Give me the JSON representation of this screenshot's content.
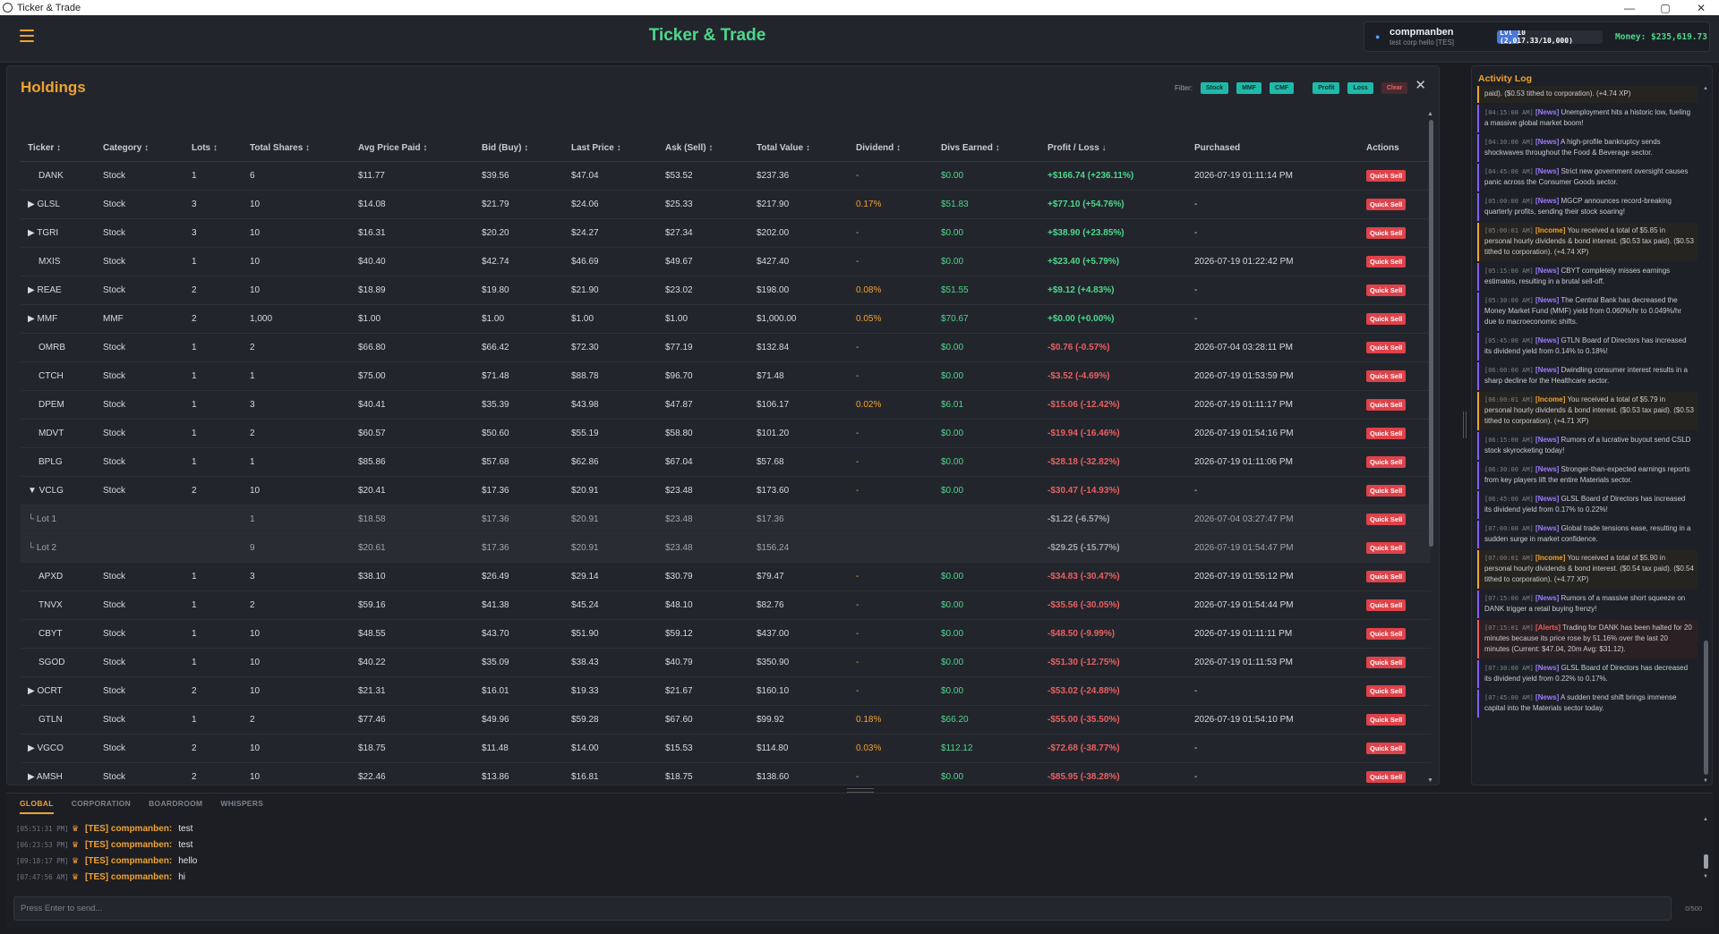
{
  "window": {
    "title": "Ticker & Trade",
    "minimize": "—",
    "restore": "▢",
    "close": "✕"
  },
  "header": {
    "title": "Ticker & Trade",
    "user": {
      "name": "compmanben",
      "corp": "test corp hello [TES]"
    },
    "level": {
      "text": "Lvl 10 (2,017.33/10,000)",
      "progress_fraction": 0.2017
    },
    "money": "Money: $235,619.73"
  },
  "holdings": {
    "title": "Holdings",
    "filter_label": "Filter:",
    "filters": {
      "stock": "Stock",
      "mmf": "MMF",
      "cmf": "CMF",
      "profit": "Profit",
      "loss": "Loss",
      "clear": "Clear"
    },
    "close": "✕",
    "columns": [
      "Ticker ↕",
      "Category ↕",
      "Lots ↕",
      "Total Shares ↕",
      "Avg Price Paid ↕",
      "Bid (Buy) ↕",
      "Last Price ↕",
      "Ask (Sell) ↕",
      "Total Value ↕",
      "Dividend ↕",
      "Divs Earned ↕",
      "Profit / Loss ↓",
      "Purchased",
      "Actions"
    ],
    "action_label": "Quick Sell",
    "rows": [
      {
        "ticker": "DANK",
        "category": "Stock",
        "lots": "1",
        "shares": "6",
        "avg": "$11.77",
        "bid": "$39.56",
        "last": "$47.04",
        "ask": "$53.52",
        "value": "$237.36",
        "div": "-",
        "divs": "$0.00",
        "pl": "+$166.74 (+236.11%)",
        "purchased": "2026-07-19 01:11:14 PM",
        "sign": "pos",
        "kind": "plain"
      },
      {
        "ticker": "▶ GLSL",
        "category": "Stock",
        "lots": "3",
        "shares": "10",
        "avg": "$14.08",
        "bid": "$21.79",
        "last": "$24.06",
        "ask": "$25.33",
        "value": "$217.90",
        "div": "0.17%",
        "divs": "$51.83",
        "pl": "+$77.10 (+54.76%)",
        "purchased": "-",
        "sign": "pos",
        "kind": "group"
      },
      {
        "ticker": "▶ TGRI",
        "category": "Stock",
        "lots": "3",
        "shares": "10",
        "avg": "$16.31",
        "bid": "$20.20",
        "last": "$24.27",
        "ask": "$27.34",
        "value": "$202.00",
        "div": "-",
        "divs": "$0.00",
        "pl": "+$38.90 (+23.85%)",
        "purchased": "-",
        "sign": "pos",
        "kind": "group"
      },
      {
        "ticker": "MXIS",
        "category": "Stock",
        "lots": "1",
        "shares": "10",
        "avg": "$40.40",
        "bid": "$42.74",
        "last": "$46.69",
        "ask": "$49.67",
        "value": "$427.40",
        "div": "-",
        "divs": "$0.00",
        "pl": "+$23.40 (+5.79%)",
        "purchased": "2026-07-19 01:22:42 PM",
        "sign": "pos",
        "kind": "plain"
      },
      {
        "ticker": "▶ REAE",
        "category": "Stock",
        "lots": "2",
        "shares": "10",
        "avg": "$18.89",
        "bid": "$19.80",
        "last": "$21.90",
        "ask": "$23.02",
        "value": "$198.00",
        "div": "0.08%",
        "divs": "$51.55",
        "pl": "+$9.12 (+4.83%)",
        "purchased": "-",
        "sign": "pos",
        "kind": "group"
      },
      {
        "ticker": "▶ MMF",
        "category": "MMF",
        "lots": "2",
        "shares": "1,000",
        "avg": "$1.00",
        "bid": "$1.00",
        "last": "$1.00",
        "ask": "$1.00",
        "value": "$1,000.00",
        "div": "0.05%",
        "divs": "$70.67",
        "pl": "+$0.00 (+0.00%)",
        "purchased": "-",
        "sign": "pos",
        "kind": "group"
      },
      {
        "ticker": "OMRB",
        "category": "Stock",
        "lots": "1",
        "shares": "2",
        "avg": "$66.80",
        "bid": "$66.42",
        "last": "$72.30",
        "ask": "$77.19",
        "value": "$132.84",
        "div": "-",
        "divs": "$0.00",
        "pl": "-$0.76 (-0.57%)",
        "purchased": "2026-07-04 03:28:11 PM",
        "sign": "neg",
        "kind": "plain"
      },
      {
        "ticker": "CTCH",
        "category": "Stock",
        "lots": "1",
        "shares": "1",
        "avg": "$75.00",
        "bid": "$71.48",
        "last": "$88.78",
        "ask": "$96.70",
        "value": "$71.48",
        "div": "-",
        "divs": "$0.00",
        "pl": "-$3.52 (-4.69%)",
        "purchased": "2026-07-19 01:53:59 PM",
        "sign": "neg",
        "kind": "plain"
      },
      {
        "ticker": "DPEM",
        "category": "Stock",
        "lots": "1",
        "shares": "3",
        "avg": "$40.41",
        "bid": "$35.39",
        "last": "$43.98",
        "ask": "$47.87",
        "value": "$106.17",
        "div": "0.02%",
        "divs": "$6.01",
        "pl": "-$15.06 (-12.42%)",
        "purchased": "2026-07-19 01:11:17 PM",
        "sign": "neg",
        "kind": "plain"
      },
      {
        "ticker": "MDVT",
        "category": "Stock",
        "lots": "1",
        "shares": "2",
        "avg": "$60.57",
        "bid": "$50.60",
        "last": "$55.19",
        "ask": "$58.80",
        "value": "$101.20",
        "div": "-",
        "divs": "$0.00",
        "pl": "-$19.94 (-16.46%)",
        "purchased": "2026-07-19 01:54:16 PM",
        "sign": "neg",
        "kind": "plain"
      },
      {
        "ticker": "BPLG",
        "category": "Stock",
        "lots": "1",
        "shares": "1",
        "avg": "$85.86",
        "bid": "$57.68",
        "last": "$62.86",
        "ask": "$67.04",
        "value": "$57.68",
        "div": "-",
        "divs": "$0.00",
        "pl": "-$28.18 (-32.82%)",
        "purchased": "2026-07-19 01:11:06 PM",
        "sign": "neg",
        "kind": "plain"
      },
      {
        "ticker": "▼ VCLG",
        "category": "Stock",
        "lots": "2",
        "shares": "10",
        "avg": "$20.41",
        "bid": "$17.36",
        "last": "$20.91",
        "ask": "$23.48",
        "value": "$173.60",
        "div": "-",
        "divs": "$0.00",
        "pl": "-$30.47 (-14.93%)",
        "purchased": "-",
        "sign": "neg",
        "kind": "group"
      },
      {
        "ticker": "└ Lot 1",
        "category": "",
        "lots": "",
        "shares": "1",
        "avg": "$18.58",
        "bid": "$17.36",
        "last": "$20.91",
        "ask": "$23.48",
        "value": "$17.36",
        "div": "",
        "divs": "",
        "pl": "-$1.22 (-6.57%)",
        "purchased": "2026-07-04 03:27:47 PM",
        "sign": "neg",
        "kind": "lot"
      },
      {
        "ticker": "└ Lot 2",
        "category": "",
        "lots": "",
        "shares": "9",
        "avg": "$20.61",
        "bid": "$17.36",
        "last": "$20.91",
        "ask": "$23.48",
        "value": "$156.24",
        "div": "",
        "divs": "",
        "pl": "-$29.25 (-15.77%)",
        "purchased": "2026-07-19 01:54:47 PM",
        "sign": "neg",
        "kind": "lot"
      },
      {
        "ticker": "APXD",
        "category": "Stock",
        "lots": "1",
        "shares": "3",
        "avg": "$38.10",
        "bid": "$26.49",
        "last": "$29.14",
        "ask": "$30.79",
        "value": "$79.47",
        "div": "-",
        "divs": "$0.00",
        "pl": "-$34.83 (-30.47%)",
        "purchased": "2026-07-19 01:55:12 PM",
        "sign": "neg",
        "kind": "plain"
      },
      {
        "ticker": "TNVX",
        "category": "Stock",
        "lots": "1",
        "shares": "2",
        "avg": "$59.16",
        "bid": "$41.38",
        "last": "$45.24",
        "ask": "$48.10",
        "value": "$82.76",
        "div": "-",
        "divs": "$0.00",
        "pl": "-$35.56 (-30.05%)",
        "purchased": "2026-07-19 01:54:44 PM",
        "sign": "neg",
        "kind": "plain"
      },
      {
        "ticker": "CBYT",
        "category": "Stock",
        "lots": "1",
        "shares": "10",
        "avg": "$48.55",
        "bid": "$43.70",
        "last": "$51.90",
        "ask": "$59.12",
        "value": "$437.00",
        "div": "-",
        "divs": "$0.00",
        "pl": "-$48.50 (-9.99%)",
        "purchased": "2026-07-19 01:11:11 PM",
        "sign": "neg",
        "kind": "plain"
      },
      {
        "ticker": "SGOD",
        "category": "Stock",
        "lots": "1",
        "shares": "10",
        "avg": "$40.22",
        "bid": "$35.09",
        "last": "$38.43",
        "ask": "$40.79",
        "value": "$350.90",
        "div": "-",
        "divs": "$0.00",
        "pl": "-$51.30 (-12.75%)",
        "purchased": "2026-07-19 01:11:53 PM",
        "sign": "neg",
        "kind": "plain"
      },
      {
        "ticker": "▶ OCRT",
        "category": "Stock",
        "lots": "2",
        "shares": "10",
        "avg": "$21.31",
        "bid": "$16.01",
        "last": "$19.33",
        "ask": "$21.67",
        "value": "$160.10",
        "div": "-",
        "divs": "$0.00",
        "pl": "-$53.02 (-24.88%)",
        "purchased": "-",
        "sign": "neg",
        "kind": "group"
      },
      {
        "ticker": "GTLN",
        "category": "Stock",
        "lots": "1",
        "shares": "2",
        "avg": "$77.46",
        "bid": "$49.96",
        "last": "$59.28",
        "ask": "$67.60",
        "value": "$99.92",
        "div": "0.18%",
        "divs": "$66.20",
        "pl": "-$55.00 (-35.50%)",
        "purchased": "2026-07-19 01:54:10 PM",
        "sign": "neg",
        "kind": "plain"
      },
      {
        "ticker": "▶ VGCO",
        "category": "Stock",
        "lots": "2",
        "shares": "10",
        "avg": "$18.75",
        "bid": "$11.48",
        "last": "$14.00",
        "ask": "$15.53",
        "value": "$114.80",
        "div": "0.03%",
        "divs": "$112.12",
        "pl": "-$72.68 (-38.77%)",
        "purchased": "-",
        "sign": "neg",
        "kind": "group"
      },
      {
        "ticker": "▶ AMSH",
        "category": "Stock",
        "lots": "2",
        "shares": "10",
        "avg": "$22.46",
        "bid": "$13.86",
        "last": "$16.81",
        "ask": "$18.75",
        "value": "$138.60",
        "div": "-",
        "divs": "$0.00",
        "pl": "-$85.95 (-38.28%)",
        "purchased": "-",
        "sign": "neg",
        "kind": "group"
      }
    ]
  },
  "activity": {
    "title": "Activity Log",
    "entries": [
      {
        "type": "income",
        "time": "",
        "tag": "",
        "text": "paid). ($0.53 tithed to corporation). (+4.74 XP)"
      },
      {
        "type": "news",
        "time": "[04:15:00 AM]",
        "tag": "[News]",
        "text": "Unemployment hits a historic low, fueling a massive global market boom!"
      },
      {
        "type": "news",
        "time": "[04:30:00 AM]",
        "tag": "[News]",
        "text": "A high-profile bankruptcy sends shockwaves throughout the Food & Beverage sector."
      },
      {
        "type": "news",
        "time": "[04:45:00 AM]",
        "tag": "[News]",
        "text": "Strict new government oversight causes panic across the Consumer Goods sector."
      },
      {
        "type": "news",
        "time": "[05:00:00 AM]",
        "tag": "[News]",
        "text": "MGCP announces record-breaking quarterly profits, sending their stock soaring!"
      },
      {
        "type": "income",
        "time": "[05:00:01 AM]",
        "tag": "[Income]",
        "text": "You received a total of $5.85 in personal hourly dividends & bond interest. ($0.53 tax paid). ($0.53 tithed to corporation). (+4.74 XP)"
      },
      {
        "type": "news",
        "time": "[05:15:00 AM]",
        "tag": "[News]",
        "text": "CBYT completely misses earnings estimates, resulting in a brutal sell-off."
      },
      {
        "type": "news",
        "time": "[05:30:00 AM]",
        "tag": "[News]",
        "text": "The Central Bank has decreased the Money Market Fund (MMF) yield from 0.060%/hr to 0.049%/hr due to macroeconomic shifts."
      },
      {
        "type": "news",
        "time": "[05:45:00 AM]",
        "tag": "[News]",
        "text": "GTLN Board of Directors has increased its dividend yield from 0.14% to 0.18%!"
      },
      {
        "type": "news",
        "time": "[06:00:00 AM]",
        "tag": "[News]",
        "text": "Dwindling consumer interest results in a sharp decline for the Healthcare sector."
      },
      {
        "type": "income",
        "time": "[06:00:01 AM]",
        "tag": "[Income]",
        "text": "You received a total of $5.79 in personal hourly dividends & bond interest. ($0.53 tax paid). ($0.53 tithed to corporation). (+4.71 XP)"
      },
      {
        "type": "news",
        "time": "[06:15:00 AM]",
        "tag": "[News]",
        "text": "Rumors of a lucrative buyout send CSLD stock skyrocketing today!"
      },
      {
        "type": "news",
        "time": "[06:30:00 AM]",
        "tag": "[News]",
        "text": "Stronger-than-expected earnings reports from key players lift the entire Materials sector."
      },
      {
        "type": "news",
        "time": "[06:45:00 AM]",
        "tag": "[News]",
        "text": "GLSL Board of Directors has increased its dividend yield from 0.17% to 0.22%!"
      },
      {
        "type": "news",
        "time": "[07:00:00 AM]",
        "tag": "[News]",
        "text": "Global trade tensions ease, resulting in a sudden surge in market confidence."
      },
      {
        "type": "income",
        "time": "[07:00:01 AM]",
        "tag": "[Income]",
        "text": "You received a total of $5.90 in personal hourly dividends & bond interest. ($0.54 tax paid). ($0.54 tithed to corporation). (+4.77 XP)"
      },
      {
        "type": "news",
        "time": "[07:15:00 AM]",
        "tag": "[News]",
        "text": "Rumors of a massive short squeeze on DANK trigger a retail buying frenzy!"
      },
      {
        "type": "alert",
        "time": "[07:15:01 AM]",
        "tag": "[Alerts]",
        "text": "Trading for DANK has been halted for 20 minutes because its price rose by 51.16% over the last 20 minutes (Current: $47.04, 20m Avg: $31.12)."
      },
      {
        "type": "news",
        "time": "[07:30:00 AM]",
        "tag": "[News]",
        "text": "GLSL Board of Directors has decreased its dividend yield from 0.22% to 0.17%."
      },
      {
        "type": "news",
        "time": "[07:45:00 AM]",
        "tag": "[News]",
        "text": "A sudden trend shift brings immense capital into the Materials sector today."
      }
    ]
  },
  "chat": {
    "tabs": [
      "GLOBAL",
      "CORPORATION",
      "BOARDROOM",
      "WHISPERS"
    ],
    "messages": [
      {
        "time": "[05:51:31 PM]",
        "user": "[TES] compmanben:",
        "text": "test"
      },
      {
        "time": "[06:23:53 PM]",
        "user": "[TES] compmanben:",
        "text": "test"
      },
      {
        "time": "[09:18:17 PM]",
        "user": "[TES] compmanben:",
        "text": "hello"
      },
      {
        "time": "[07:47:56 AM]",
        "user": "[TES] compmanben:",
        "text": "hi"
      }
    ],
    "input_placeholder": "Press Enter to send...",
    "char_count": "0/500"
  }
}
